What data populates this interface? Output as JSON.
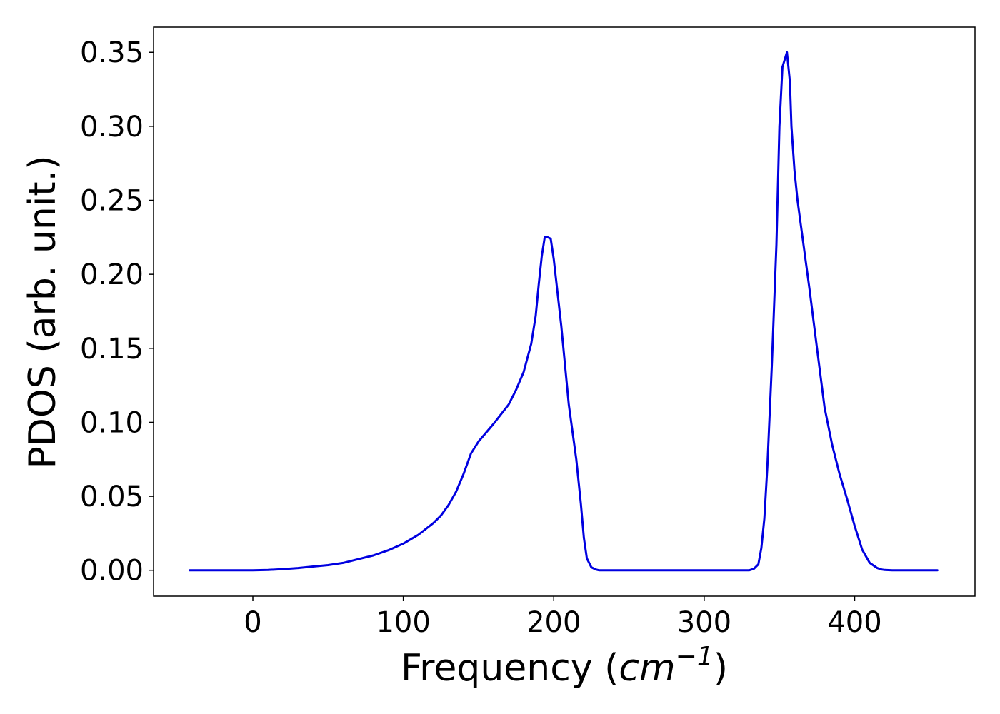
{
  "chart_data": {
    "type": "line",
    "xlabel_prefix": "Frequency (",
    "xlabel_var": "cm",
    "xlabel_exp": "−1",
    "xlabel_suffix": ")",
    "ylabel": "PDOS (arb. unit.)",
    "xlim": [
      -66,
      480
    ],
    "ylim": [
      -0.0175,
      0.367
    ],
    "x_ticks": [
      0,
      100,
      200,
      300,
      400
    ],
    "y_ticks": [
      0.0,
      0.05,
      0.1,
      0.15,
      0.2,
      0.25,
      0.3,
      0.35
    ],
    "x_tick_labels": [
      "0",
      "100",
      "200",
      "300",
      "400"
    ],
    "y_tick_labels": [
      "0.00",
      "0.05",
      "0.10",
      "0.15",
      "0.20",
      "0.25",
      "0.30",
      "0.35"
    ],
    "grid": false,
    "legend": "none",
    "series": [
      {
        "color": "#0000e0",
        "x": [
          -42,
          0,
          10,
          20,
          30,
          40,
          50,
          60,
          70,
          80,
          90,
          100,
          110,
          120,
          125,
          130,
          135,
          140,
          145,
          150,
          160,
          170,
          175,
          180,
          185,
          188,
          190,
          192,
          194,
          196,
          198,
          200,
          205,
          210,
          215,
          218,
          220,
          222,
          225,
          228,
          230,
          240,
          260,
          280,
          300,
          320,
          330,
          333,
          336,
          338,
          340,
          342,
          345,
          348,
          350,
          352,
          355,
          357,
          358,
          360,
          362,
          364,
          366,
          368,
          370,
          375,
          380,
          385,
          390,
          395,
          400,
          405,
          410,
          415,
          418,
          420,
          425,
          430,
          455
        ],
        "y": [
          0.0,
          0.0,
          0.0002,
          0.0008,
          0.0015,
          0.0025,
          0.0035,
          0.005,
          0.0075,
          0.01,
          0.0135,
          0.018,
          0.024,
          0.032,
          0.037,
          0.044,
          0.053,
          0.065,
          0.079,
          0.087,
          0.099,
          0.112,
          0.122,
          0.134,
          0.153,
          0.172,
          0.193,
          0.212,
          0.225,
          0.225,
          0.224,
          0.21,
          0.165,
          0.112,
          0.075,
          0.045,
          0.022,
          0.008,
          0.002,
          0.0005,
          0.0,
          0.0,
          0.0,
          0.0,
          0.0,
          0.0,
          0.0,
          0.001,
          0.004,
          0.015,
          0.035,
          0.07,
          0.14,
          0.22,
          0.3,
          0.34,
          0.35,
          0.33,
          0.3,
          0.27,
          0.25,
          0.235,
          0.22,
          0.205,
          0.19,
          0.15,
          0.11,
          0.085,
          0.065,
          0.048,
          0.03,
          0.014,
          0.005,
          0.0015,
          0.0005,
          0.0002,
          0.0,
          0.0,
          0.0
        ]
      }
    ]
  }
}
